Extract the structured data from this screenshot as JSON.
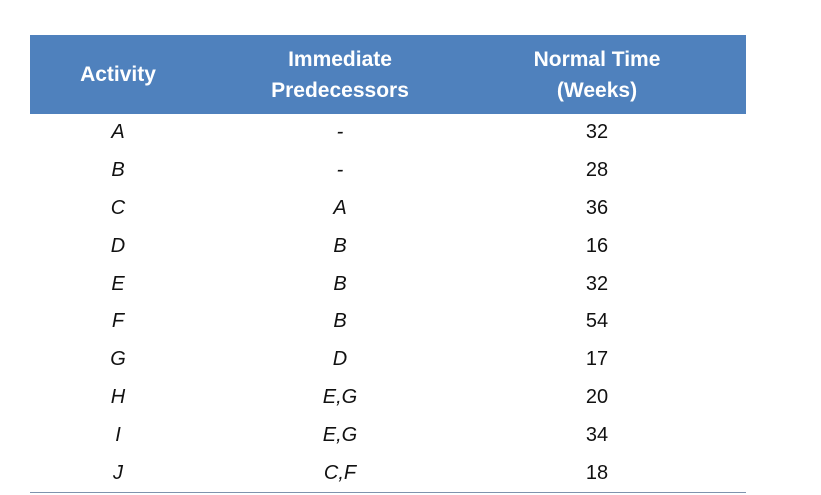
{
  "table": {
    "header": [
      [
        "Activity"
      ],
      [
        "Immediate",
        "Predecessors"
      ],
      [
        "Normal Time",
        "(Weeks)"
      ]
    ],
    "rows": [
      [
        "A",
        "-",
        32
      ],
      [
        "B",
        "-",
        28
      ],
      [
        "C",
        "A",
        36
      ],
      [
        "D",
        "B",
        16
      ],
      [
        "E",
        "B",
        32
      ],
      [
        "F",
        "B",
        54
      ],
      [
        "G",
        "D",
        17
      ],
      [
        "H",
        "E,G",
        20
      ],
      [
        "I",
        "E,G",
        34
      ],
      [
        "J",
        "C,F",
        18
      ]
    ]
  }
}
